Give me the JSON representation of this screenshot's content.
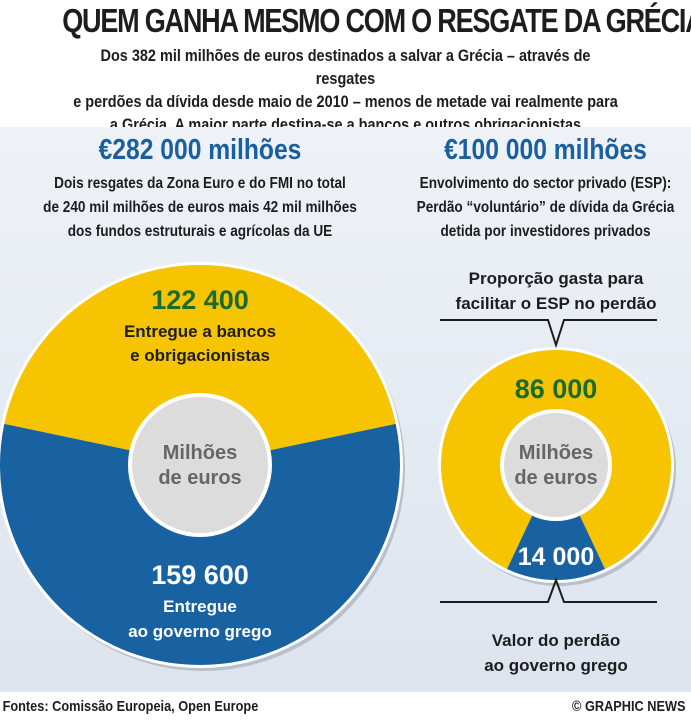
{
  "title": "QUEM GANHA MESMO COM O RESGATE DA GRÉCIA?",
  "subtitle": [
    "Dos 382 mil milhões de euros destinados a salvar a Grécia – através de resgates",
    "e perdões da dívida desde maio de 2010 – menos de metade vai realmente para",
    "a Grécia. A maior parte destina-se a bancos e outros obrigacionistas"
  ],
  "colors": {
    "yellow": "#f6c400",
    "blue": "#1862a2",
    "green": "#1b6a2c",
    "headline_blue": "#1a5fa0",
    "center": "#dcdcdc"
  },
  "chart_data": [
    {
      "type": "pie",
      "variant": "donut",
      "total_label": "€282 000 milhões",
      "description": [
        "Dois resgates da Zona Euro e do FMI no total",
        "de 240 mil milhões de euros mais 42 mil milhões",
        "dos fundos estruturais e agrícolas da UE"
      ],
      "center_label": [
        "Milhões",
        "de euros"
      ],
      "slices": [
        {
          "value": 122400,
          "label": "122 400",
          "caption": [
            "Entregue a bancos",
            "e obrigacionistas"
          ],
          "color": "#f6c400"
        },
        {
          "value": 159600,
          "label": "159 600",
          "caption": [
            "Entregue",
            "ao governo grego"
          ],
          "color": "#1862a2"
        }
      ]
    },
    {
      "type": "pie",
      "variant": "donut",
      "total_label": "€100 000 milhões",
      "description": [
        "Envolvimento do sector privado (ESP):",
        "Perdão “voluntário” de dívida da Grécia",
        "detida por investidores privados"
      ],
      "center_label": [
        "Milhões",
        "de euros"
      ],
      "slices": [
        {
          "value": 86000,
          "label": "86 000",
          "caption": [
            "Proporção gasta para",
            "facilitar o ESP no perdão"
          ],
          "color": "#f6c400"
        },
        {
          "value": 14000,
          "label": "14 000",
          "caption": [
            "Valor do perdão",
            "ao governo grego"
          ],
          "color": "#1862a2"
        }
      ]
    }
  ],
  "footer": {
    "sources": "Fontes: Comissão Europeia, Open Europe",
    "credit": "© GRAPHIC NEWS"
  }
}
